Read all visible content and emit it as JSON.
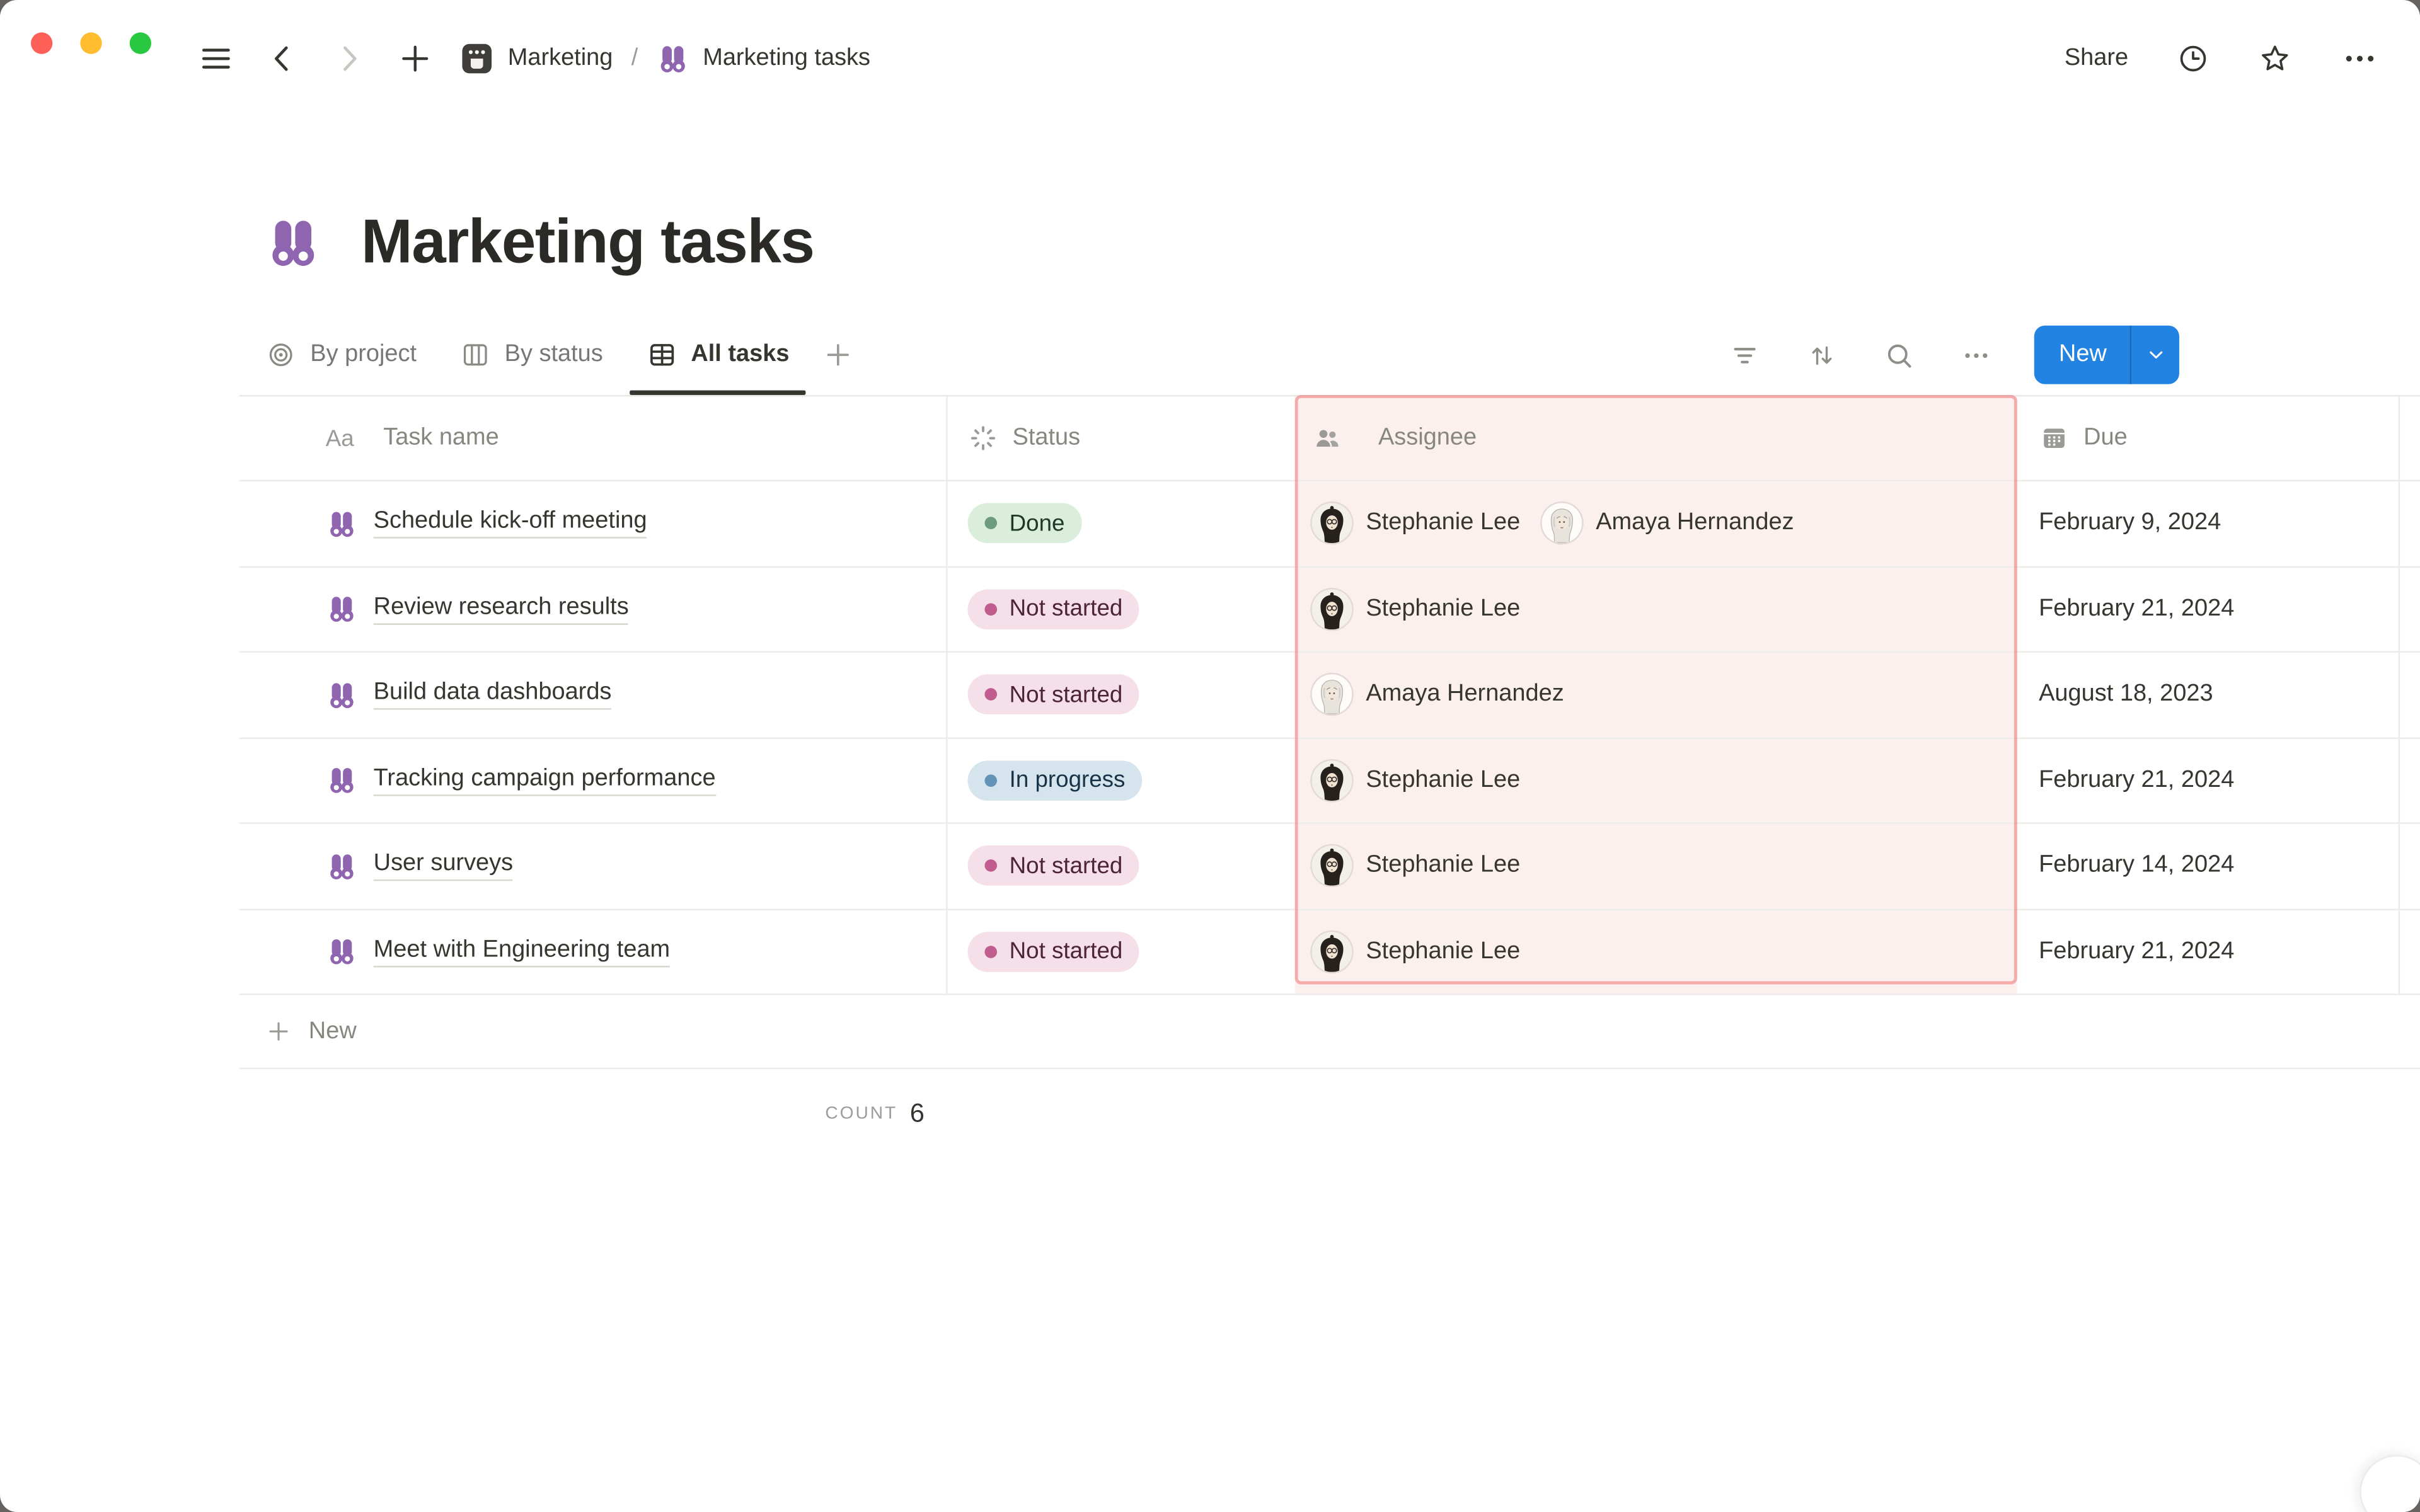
{
  "topbar": {
    "breadcrumb": [
      {
        "icon": "page-icon",
        "label": "Marketing"
      },
      {
        "icon": "binoculars-icon",
        "label": "Marketing tasks"
      }
    ],
    "separator": "/",
    "share_label": "Share"
  },
  "page": {
    "icon": "binoculars-icon",
    "title": "Marketing tasks"
  },
  "views": {
    "tabs": [
      {
        "icon": "target-icon",
        "label": "By project",
        "active": false
      },
      {
        "icon": "board-icon",
        "label": "By status",
        "active": false
      },
      {
        "icon": "table-icon",
        "label": "All tasks",
        "active": true
      }
    ]
  },
  "toolbar": {
    "new_label": "New"
  },
  "table": {
    "columns": [
      {
        "icon": "Aa",
        "label": "Task name"
      },
      {
        "icon": "status-spinner-icon",
        "label": "Status"
      },
      {
        "icon": "people-icon",
        "label": "Assignee",
        "selected": true
      },
      {
        "icon": "calendar-icon",
        "label": "Due"
      }
    ],
    "rows": [
      {
        "task": "Schedule kick-off meeting",
        "status": {
          "label": "Done",
          "color": "green"
        },
        "assignees": [
          {
            "name": "Stephanie Lee",
            "avatar": "stephanie"
          },
          {
            "name": "Amaya Hernandez",
            "avatar": "amaya"
          }
        ],
        "due": "February 9, 2024"
      },
      {
        "task": "Review research results",
        "status": {
          "label": "Not started",
          "color": "pink"
        },
        "assignees": [
          {
            "name": "Stephanie Lee",
            "avatar": "stephanie"
          }
        ],
        "due": "February 21, 2024"
      },
      {
        "task": "Build data dashboards",
        "status": {
          "label": "Not started",
          "color": "pink"
        },
        "assignees": [
          {
            "name": "Amaya Hernandez",
            "avatar": "amaya"
          }
        ],
        "due": "August 18, 2023"
      },
      {
        "task": "Tracking campaign performance",
        "status": {
          "label": "In progress",
          "color": "blue"
        },
        "assignees": [
          {
            "name": "Stephanie Lee",
            "avatar": "stephanie"
          }
        ],
        "due": "February 21, 2024"
      },
      {
        "task": "User surveys",
        "status": {
          "label": "Not started",
          "color": "pink"
        },
        "assignees": [
          {
            "name": "Stephanie Lee",
            "avatar": "stephanie"
          }
        ],
        "due": "February 14, 2024"
      },
      {
        "task": "Meet with Engineering team",
        "status": {
          "label": "Not started",
          "color": "pink"
        },
        "assignees": [
          {
            "name": "Stephanie Lee",
            "avatar": "stephanie"
          }
        ],
        "due": "February 21, 2024"
      }
    ],
    "footer": {
      "new_label": "New",
      "count_label": "COUNT",
      "count_value": "6"
    }
  },
  "colors": {
    "accent_blue": "#2383E2",
    "brand_purple": "#9065B0",
    "selected_column_bg": "#FBF0EE",
    "selected_column_border": "rgba(235,87,87,0.45)",
    "traffic": {
      "close": "#FE5F57",
      "minimize": "#FEBC2E",
      "zoom": "#28C840"
    },
    "status": {
      "green": {
        "bg": "#DBEDDB",
        "dot": "#6C9B7D",
        "text": "#1C3829"
      },
      "pink": {
        "bg": "#F5DFE8",
        "dot": "#C05C8E",
        "text": "#4C2337"
      },
      "blue": {
        "bg": "#D6E4EE",
        "dot": "#6493B9",
        "text": "#183347"
      }
    }
  }
}
